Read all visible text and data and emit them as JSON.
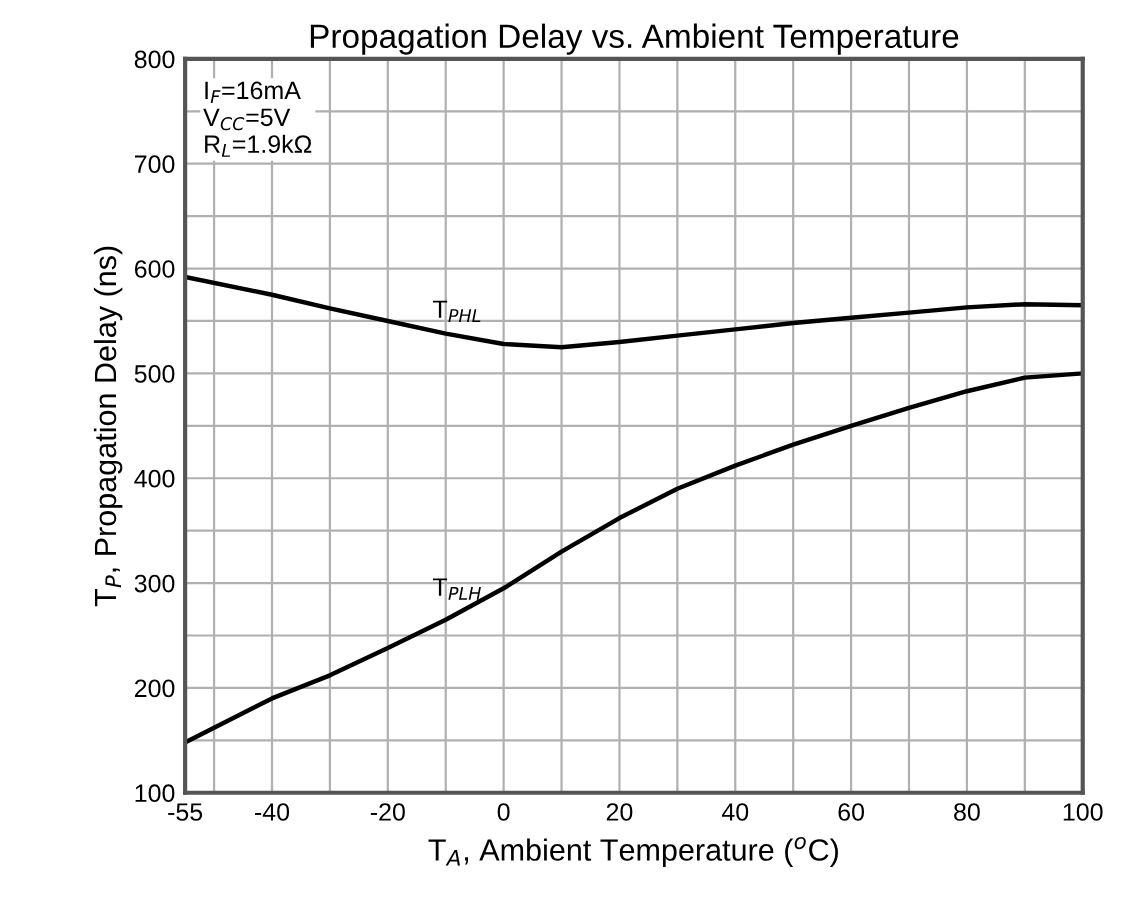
{
  "chart_data": {
    "type": "line",
    "title": "Propagation Delay vs. Ambient Temperature",
    "xlabel": "T$_{A}$, Ambient Temperature ($^{o}$C)",
    "ylabel": "T$_{P}$, Propagation Delay (ns)",
    "x": [
      -55,
      -40,
      -30,
      -20,
      -10,
      0,
      10,
      20,
      30,
      40,
      50,
      60,
      70,
      80,
      90,
      100
    ],
    "series": [
      {
        "name": "T$_{PHL}$",
        "color": "#000000",
        "values": [
          592,
          575,
          562,
          550,
          538,
          528,
          525,
          530,
          536,
          542,
          548,
          553,
          558,
          563,
          566,
          565
        ]
      },
      {
        "name": "T$_{PLH}$",
        "color": "#000000",
        "values": [
          148,
          190,
          212,
          238,
          265,
          295,
          330,
          362,
          390,
          412,
          432,
          450,
          467,
          483,
          496,
          500
        ]
      }
    ],
    "annotations": [
      "I$_{F}$=16mA\nV$_{CC}$=5V\nR$_{L}$=1.9kΩ"
    ],
    "xlim": [
      -55,
      100
    ],
    "ylim": [
      100,
      800
    ],
    "xticks": [
      -55,
      {
        "value": -50,
        "label": null
      },
      -40,
      {
        "value": -30,
        "label": null
      },
      -20,
      {
        "value": -10,
        "label": null
      },
      0,
      {
        "value": 10,
        "label": null
      },
      20,
      {
        "value": 30,
        "label": null
      },
      40,
      {
        "value": 50,
        "label": null
      },
      60,
      {
        "value": 70,
        "label": null
      },
      80,
      {
        "value": 90,
        "label": null
      },
      100
    ],
    "yticks": [
      100,
      {
        "value": 150,
        "label": null
      },
      200,
      {
        "value": 250,
        "label": null
      },
      300,
      {
        "value": 350,
        "label": null
      },
      400,
      {
        "value": 450,
        "label": null
      },
      500,
      {
        "value": 550,
        "label": null
      },
      600,
      {
        "value": 650,
        "label": null
      },
      700,
      {
        "value": 750,
        "label": null
      },
      800
    ],
    "grid": true,
    "marker": "none",
    "line_style": "solid",
    "legend": false
  }
}
